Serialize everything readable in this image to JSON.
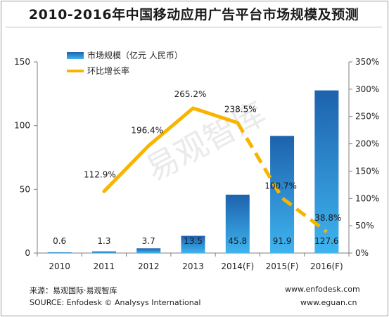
{
  "header": {
    "title": "2010-2016年中国移动应用广告平台市场规模及预测"
  },
  "watermark": {
    "text": "易观智库"
  },
  "footer": {
    "source_cn": "来源：易观国际·易观智库",
    "source_en": "SOURCE: Enfodesk © Analysys International",
    "url_1": "www.enfodesk.com",
    "url_2": "www.eguan.cn"
  },
  "colors": {
    "bar_top": "#1d62ad",
    "bar_bottom": "#3fb4ef",
    "line": "#f7b500",
    "axis": "#7f7f7f"
  },
  "chart_data": {
    "type": "bar",
    "title": "2010-2016年中国移动应用广告平台市场规模及预测",
    "categories": [
      "2010",
      "2011",
      "2012",
      "2013",
      "2014(F)",
      "2015(F)",
      "2016(F)"
    ],
    "series": [
      {
        "name": "市场规模（亿元 人民币）",
        "type": "bar",
        "axis": "left",
        "values": [
          0.6,
          1.3,
          3.7,
          13.5,
          45.8,
          91.9,
          127.6
        ],
        "labels": [
          "0.6",
          "1.3",
          "3.7",
          "13.5",
          "45.8",
          "91.9",
          "127.6"
        ]
      },
      {
        "name": "环比增长率",
        "type": "line",
        "axis": "right",
        "values": [
          null,
          112.9,
          196.4,
          265.2,
          238.5,
          100.7,
          38.8
        ],
        "labels": [
          "",
          "112.9%",
          "196.4%",
          "265.2%",
          "238.5%",
          "100.7%",
          "38.8%"
        ],
        "dashed_from_index": 4
      }
    ],
    "y_left": {
      "min": 0,
      "max": 150,
      "ticks": [
        "0",
        "50",
        "100",
        "150"
      ],
      "tick_values": [
        0,
        50,
        100,
        150
      ]
    },
    "y_right": {
      "min": 0,
      "max": 350,
      "ticks": [
        "0%",
        "50%",
        "100%",
        "150%",
        "200%",
        "250%",
        "300%",
        "350%"
      ],
      "tick_values": [
        0,
        50,
        100,
        150,
        200,
        250,
        300,
        350
      ]
    },
    "grid": false,
    "legend_position": "top-left"
  }
}
